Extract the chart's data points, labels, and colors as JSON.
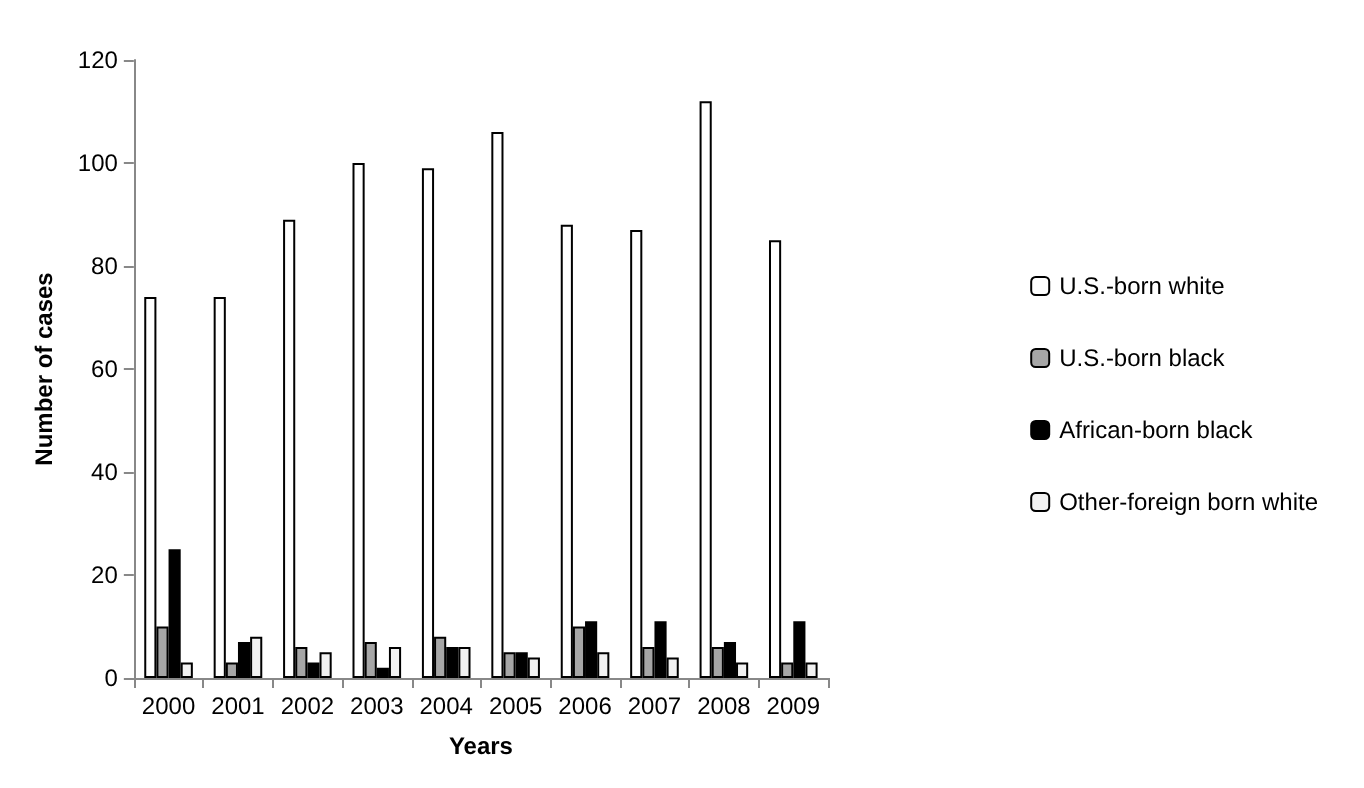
{
  "chart_data": {
    "type": "bar",
    "xlabel": "Years",
    "ylabel": "Number of cases",
    "categories": [
      "2000",
      "2001",
      "2002",
      "2003",
      "2004",
      "2005",
      "2006",
      "2007",
      "2008",
      "2009"
    ],
    "series": [
      {
        "name": "U.S.-born white",
        "color": "#ffffff",
        "values": [
          74,
          74,
          89,
          100,
          99,
          106,
          88,
          87,
          112,
          85
        ]
      },
      {
        "name": "U.S.-born black",
        "color": "#a6a6a6",
        "values": [
          10,
          3,
          6,
          7,
          8,
          5,
          10,
          6,
          6,
          3
        ]
      },
      {
        "name": "African-born black",
        "color": "#000000",
        "values": [
          25,
          7,
          3,
          2,
          6,
          5,
          11,
          11,
          7,
          11
        ]
      },
      {
        "name": "Other-foreign born white",
        "color": "#f2f2f2",
        "values": [
          3,
          8,
          5,
          6,
          6,
          4,
          5,
          4,
          3,
          3
        ]
      }
    ],
    "ylim": [
      0,
      120
    ],
    "yticks": [
      0,
      20,
      40,
      60,
      80,
      100,
      120
    ],
    "grid": false,
    "legend": "right"
  }
}
